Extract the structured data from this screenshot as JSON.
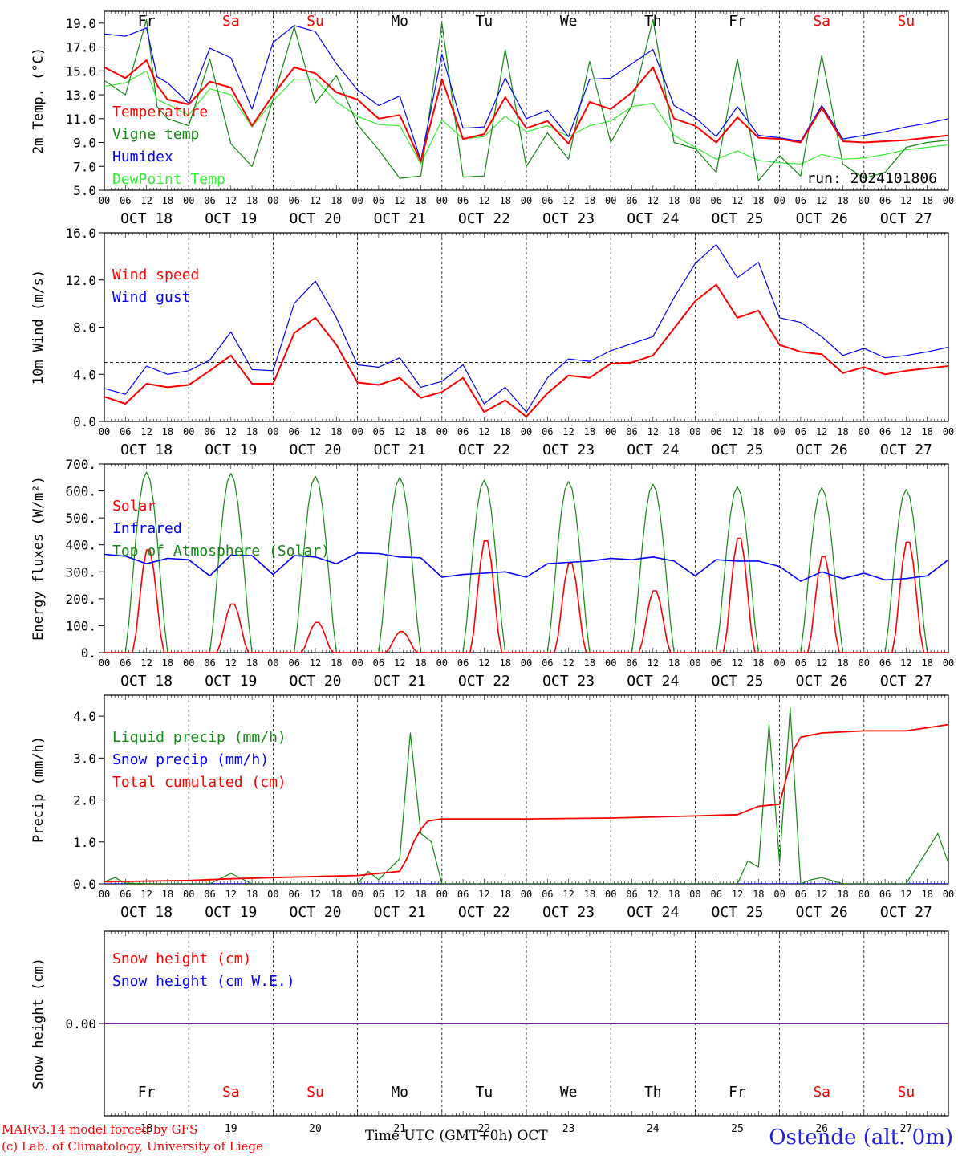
{
  "colors": {
    "red": "#ff0000",
    "green": "#118811",
    "blue": "#0000ff",
    "lightgreen": "#33ee33",
    "purple": "#7a1fa2",
    "weekend_red": "#ff0000",
    "axis": "#000000"
  },
  "days": {
    "names": [
      "Fr",
      "Sa",
      "Su",
      "Mo",
      "Tu",
      "We",
      "Th",
      "Fr",
      "Sa",
      "Su"
    ],
    "weekend": [
      false,
      true,
      true,
      false,
      false,
      false,
      false,
      false,
      true,
      true
    ],
    "dates": [
      "OCT 18",
      "OCT 19",
      "OCT 20",
      "OCT 21",
      "OCT 22",
      "OCT 23",
      "OCT 24",
      "OCT 25",
      "OCT 26",
      "OCT 27"
    ],
    "day_numbers": [
      "18",
      "19",
      "20",
      "21",
      "22",
      "23",
      "24",
      "25",
      "26",
      "27"
    ],
    "hour_ticks": [
      "00",
      "06",
      "12",
      "18"
    ],
    "last_tick": "00"
  },
  "footer": {
    "credit_line1": "MARv3.14 model forced by GFS",
    "credit_line2": "(c) Lab. of Climatology, University of Liege",
    "xlabel": "Time UTC (GMT+0h)",
    "month": "OCT",
    "station": "Ostende (alt. 0m)"
  },
  "chart_data": [
    {
      "type": "line",
      "title": "",
      "ylabel": "2m Temp. (°C)",
      "ylim": [
        5,
        20
      ],
      "yticks": [
        "5.0",
        "7.0",
        "9.0",
        "11.0",
        "13.0",
        "15.0",
        "17.0",
        "19.0"
      ],
      "x_unit": "hours since OCT 18 00 UTC",
      "annotation": "run: 2024101806",
      "series": [
        {
          "name": "Temperature",
          "color": "red",
          "x": [
            0,
            6,
            12,
            15,
            18,
            24,
            30,
            36,
            42,
            48,
            54,
            60,
            66,
            72,
            78,
            84,
            90,
            96,
            102,
            108,
            114,
            120,
            126,
            132,
            138,
            144,
            150,
            156,
            162,
            168,
            174,
            180,
            186,
            192,
            198,
            204,
            210,
            216,
            222,
            228,
            234,
            240
          ],
          "y": [
            15.3,
            14.4,
            15.9,
            13.8,
            12.6,
            12.2,
            14.1,
            13.6,
            10.4,
            13.0,
            15.3,
            14.8,
            13.2,
            12.6,
            11.0,
            11.3,
            7.4,
            14.3,
            9.3,
            9.7,
            12.8,
            10.2,
            10.8,
            8.9,
            12.4,
            11.8,
            13.2,
            15.3,
            11.0,
            10.4,
            9.0,
            11.1,
            9.4,
            9.3,
            9.0,
            11.9,
            9.1,
            9.0,
            9.1,
            9.2,
            9.4,
            9.6
          ]
        },
        {
          "name": "Vigne temp",
          "color": "green",
          "x": [
            0,
            6,
            12,
            15,
            18,
            24,
            30,
            36,
            42,
            48,
            54,
            60,
            66,
            72,
            78,
            84,
            90,
            96,
            102,
            108,
            114,
            120,
            126,
            132,
            138,
            144,
            150,
            156,
            162,
            168,
            174,
            180,
            186,
            192,
            198,
            204,
            210,
            216,
            222,
            228,
            234,
            240
          ],
          "y": [
            14.2,
            13.0,
            19.3,
            12.0,
            11.0,
            10.4,
            16.0,
            8.9,
            7.0,
            12.6,
            18.7,
            12.3,
            14.6,
            10.5,
            8.4,
            6.0,
            6.2,
            19.0,
            6.1,
            6.2,
            16.8,
            7.0,
            9.8,
            7.6,
            15.8,
            9.0,
            12.1,
            19.3,
            9.0,
            8.5,
            6.5,
            16.0,
            5.8,
            7.9,
            6.2,
            16.3,
            7.2,
            6.0,
            6.5,
            8.6,
            9.0,
            9.2
          ]
        },
        {
          "name": "Humidex",
          "color": "blue",
          "x": [
            0,
            6,
            12,
            15,
            18,
            24,
            30,
            36,
            42,
            48,
            54,
            60,
            66,
            72,
            78,
            84,
            90,
            96,
            102,
            108,
            114,
            120,
            126,
            132,
            138,
            144,
            150,
            156,
            162,
            168,
            174,
            180,
            186,
            192,
            198,
            204,
            210,
            216,
            222,
            228,
            234,
            240
          ],
          "y": [
            18.1,
            17.9,
            18.6,
            14.5,
            14.0,
            12.3,
            16.9,
            16.1,
            11.8,
            17.4,
            18.8,
            18.3,
            15.6,
            13.4,
            12.1,
            12.9,
            7.5,
            16.4,
            10.2,
            10.3,
            14.4,
            11.0,
            11.7,
            9.5,
            14.3,
            14.4,
            15.6,
            16.8,
            12.1,
            11.1,
            9.5,
            12.0,
            9.6,
            9.4,
            9.1,
            12.1,
            9.3,
            9.6,
            9.9,
            10.3,
            10.6,
            11.0
          ]
        },
        {
          "name": "DewPoint Temp",
          "color": "lightgreen",
          "x": [
            0,
            6,
            12,
            15,
            18,
            24,
            30,
            36,
            42,
            48,
            54,
            60,
            66,
            72,
            78,
            84,
            90,
            96,
            102,
            108,
            114,
            120,
            126,
            132,
            138,
            144,
            150,
            156,
            162,
            168,
            174,
            180,
            186,
            192,
            198,
            204,
            210,
            216,
            222,
            228,
            234,
            240
          ],
          "y": [
            13.7,
            14.0,
            15.0,
            12.6,
            12.2,
            11.3,
            13.5,
            13.0,
            10.3,
            12.5,
            14.3,
            14.3,
            12.4,
            11.2,
            10.5,
            10.4,
            7.2,
            10.9,
            9.3,
            9.5,
            11.2,
            9.9,
            10.4,
            9.5,
            10.4,
            10.8,
            12.0,
            12.3,
            9.6,
            8.6,
            7.6,
            8.3,
            7.5,
            7.3,
            7.2,
            8.0,
            7.6,
            7.7,
            8.0,
            8.4,
            8.6,
            8.8
          ]
        }
      ]
    },
    {
      "type": "line",
      "title": "",
      "ylabel": "10m Wind (m/s)",
      "ylim": [
        0,
        16
      ],
      "yticks": [
        "0.0",
        "4.0",
        "8.0",
        "12.0",
        "16.0"
      ],
      "reference_line": 5,
      "series": [
        {
          "name": "Wind speed",
          "color": "red",
          "x": [
            0,
            6,
            12,
            18,
            24,
            30,
            36,
            42,
            48,
            54,
            60,
            66,
            72,
            78,
            84,
            90,
            96,
            102,
            108,
            114,
            120,
            126,
            132,
            138,
            144,
            150,
            156,
            162,
            168,
            174,
            180,
            186,
            192,
            198,
            204,
            210,
            216,
            222,
            228,
            234,
            240
          ],
          "y": [
            2.1,
            1.5,
            3.2,
            2.9,
            3.1,
            4.3,
            5.6,
            3.2,
            3.2,
            7.5,
            8.8,
            6.5,
            3.3,
            3.1,
            3.7,
            2.0,
            2.5,
            3.7,
            0.8,
            1.8,
            0.4,
            2.4,
            3.9,
            3.7,
            4.9,
            5.0,
            5.6,
            7.9,
            10.2,
            11.6,
            8.8,
            9.4,
            6.5,
            5.9,
            5.7,
            4.1,
            4.6,
            4.0,
            4.3,
            4.5,
            4.7
          ]
        },
        {
          "name": "Wind gust",
          "color": "blue",
          "x": [
            0,
            6,
            12,
            18,
            24,
            30,
            36,
            42,
            48,
            54,
            60,
            66,
            72,
            78,
            84,
            90,
            96,
            102,
            108,
            114,
            120,
            126,
            132,
            138,
            144,
            150,
            156,
            162,
            168,
            174,
            180,
            186,
            192,
            198,
            204,
            210,
            216,
            222,
            228,
            234,
            240
          ],
          "y": [
            2.8,
            2.3,
            4.7,
            4.0,
            4.3,
            5.2,
            7.6,
            4.4,
            4.3,
            10.0,
            11.9,
            8.8,
            4.8,
            4.6,
            5.4,
            2.9,
            3.4,
            4.8,
            1.5,
            2.9,
            0.8,
            3.7,
            5.3,
            5.1,
            6.0,
            6.6,
            7.2,
            10.5,
            13.4,
            15.0,
            12.2,
            13.5,
            8.8,
            8.4,
            7.2,
            5.6,
            6.2,
            5.4,
            5.6,
            5.9,
            6.3
          ]
        }
      ]
    },
    {
      "type": "line",
      "title": "",
      "ylabel": "Energy fluxes (W/m²)",
      "ylim": [
        0,
        700
      ],
      "yticks": [
        "0.",
        "100.",
        "200.",
        "300.",
        "400.",
        "500.",
        "600.",
        "700."
      ],
      "series": [
        {
          "name": "Solar",
          "color": "red",
          "peaks": [
            390,
            185,
            115,
            80,
            425,
            340,
            235,
            435,
            365,
            420
          ],
          "peak_hour": 13
        },
        {
          "name": "Infrared",
          "color": "blue",
          "x": [
            0,
            6,
            12,
            18,
            24,
            30,
            36,
            42,
            48,
            54,
            60,
            66,
            72,
            78,
            84,
            90,
            96,
            102,
            108,
            114,
            120,
            126,
            132,
            138,
            144,
            150,
            156,
            162,
            168,
            174,
            180,
            186,
            192,
            198,
            204,
            210,
            216,
            222,
            228,
            234,
            240
          ],
          "y": [
            365,
            358,
            330,
            350,
            345,
            285,
            362,
            360,
            290,
            360,
            355,
            330,
            370,
            368,
            355,
            352,
            280,
            290,
            295,
            300,
            280,
            330,
            335,
            340,
            350,
            345,
            355,
            340,
            285,
            345,
            340,
            340,
            320,
            265,
            300,
            275,
            295,
            270,
            275,
            285,
            345
          ]
        },
        {
          "name": "Top of Atmosphere (Solar)",
          "color": "green",
          "peaks": [
            670,
            665,
            655,
            650,
            640,
            635,
            625,
            615,
            612,
            605
          ],
          "peak_hour": 12
        }
      ]
    },
    {
      "type": "line",
      "title": "",
      "ylabel": "Precip (mm/h)",
      "ylim": [
        0,
        4.5
      ],
      "yticks": [
        "0.0",
        "1.0",
        "2.0",
        "3.0",
        "4.0"
      ],
      "series": [
        {
          "name": "Liquid precip (mm/h)",
          "color": "green",
          "x": [
            0,
            3,
            6,
            12,
            30,
            36,
            42,
            72,
            75,
            78,
            84,
            87,
            90,
            93,
            96,
            99,
            102,
            180,
            183,
            186,
            189,
            192,
            195,
            198,
            201,
            204,
            210,
            228,
            237,
            240
          ],
          "y": [
            0.05,
            0.15,
            0.02,
            0.0,
            0.0,
            0.25,
            0.0,
            0.0,
            0.3,
            0.1,
            0.6,
            3.6,
            1.2,
            1.0,
            0.0,
            0.0,
            0.0,
            0.0,
            0.55,
            0.4,
            3.8,
            0.5,
            4.2,
            0.0,
            0.1,
            0.15,
            0.0,
            0.0,
            1.2,
            0.5
          ]
        },
        {
          "name": "Snow precip (mm/h)",
          "color": "blue",
          "x": [
            0,
            240
          ],
          "y": [
            0.0,
            0.0
          ]
        },
        {
          "name": "Total cumulated (cm)",
          "color": "red",
          "x": [
            0,
            24,
            36,
            48,
            72,
            84,
            86,
            88,
            90,
            92,
            96,
            120,
            144,
            168,
            180,
            186,
            192,
            196,
            198,
            204,
            216,
            228,
            240
          ],
          "y": [
            0.05,
            0.08,
            0.12,
            0.15,
            0.2,
            0.3,
            0.6,
            1.0,
            1.3,
            1.5,
            1.55,
            1.55,
            1.57,
            1.62,
            1.65,
            1.85,
            1.9,
            3.2,
            3.5,
            3.6,
            3.65,
            3.65,
            3.8
          ]
        }
      ]
    },
    {
      "type": "line",
      "title": "",
      "ylabel": "Snow height (cm)",
      "ylim": [
        -1,
        1
      ],
      "yticks": [
        "0.00"
      ],
      "series": [
        {
          "name": "Snow height (cm)",
          "color": "red",
          "x": [
            0,
            240
          ],
          "y": [
            0,
            0
          ]
        },
        {
          "name": "Snow height (cm W.E.)",
          "color": "blue",
          "x": [
            0,
            240
          ],
          "y": [
            0,
            0
          ]
        }
      ]
    }
  ]
}
